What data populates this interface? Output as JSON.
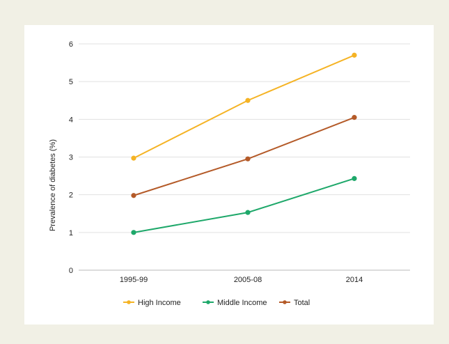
{
  "chart_data": {
    "type": "line",
    "categories": [
      "1995-99",
      "2005-08",
      "2014"
    ],
    "series": [
      {
        "name": "High Income",
        "values": [
          2.97,
          4.5,
          5.7
        ],
        "color": "#f5b324"
      },
      {
        "name": "Middle Income",
        "values": [
          1.0,
          1.53,
          2.43
        ],
        "color": "#1ea86a"
      },
      {
        "name": "Total",
        "values": [
          1.98,
          2.95,
          4.05
        ],
        "color": "#b45a28"
      }
    ],
    "ylabel": "Prevalence of diabetes (%)",
    "xlabel": "",
    "title": "",
    "ylim": [
      0,
      6
    ],
    "yticks": [
      0,
      1,
      2,
      3,
      4,
      5,
      6
    ],
    "grid": true,
    "legend_position": "bottom"
  },
  "colors": {
    "background": "#f1f0e5",
    "panel": "#ffffff",
    "grid": "#e1e1e1",
    "axis": "#b8b8b8"
  }
}
